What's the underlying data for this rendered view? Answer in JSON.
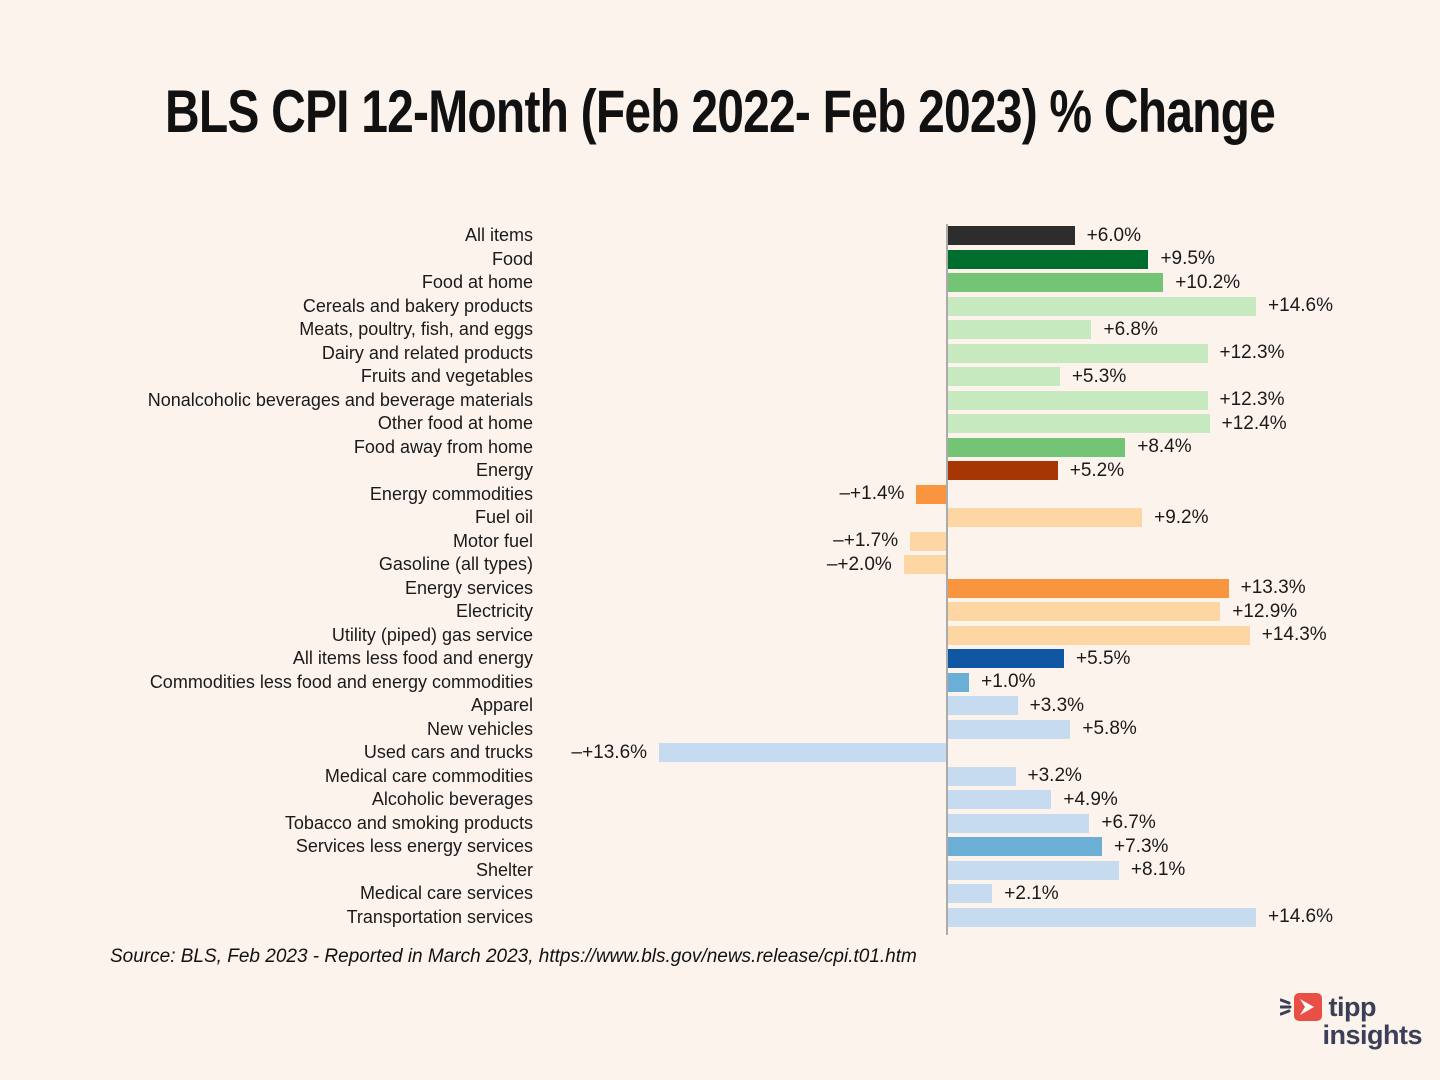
{
  "title": "BLS CPI 12-Month (Feb 2022- Feb 2023) % Change",
  "source_note": "Source:  BLS, Feb 2023 - Reported in March 2023, https://www.bls.gov/news.release/cpi.t01.htm",
  "logo": {
    "line1": "tipp",
    "line2": "insights",
    "icon": "tipp-insights-arrow-icon",
    "navy": "#3b4058",
    "red": "#e94f46"
  },
  "colors": {
    "background": "#fdf3ed",
    "axis_line": "#ababab",
    "text": "#1a1a1a",
    "dark_gray": "#2d2d2d",
    "dark_green": "#006d2c",
    "mid_green": "#74c476",
    "light_green": "#c7e9c0",
    "dark_rust": "#a63603",
    "mid_orange": "#f8953e",
    "light_orange": "#fdd6a4",
    "dark_blue": "#0f57a2",
    "mid_blue": "#6baed6",
    "light_blue": "#c6dbef"
  },
  "chart_data": {
    "type": "bar",
    "orientation": "horizontal",
    "title": "BLS CPI 12-Month (Feb 2022- Feb 2023) % Change",
    "xlabel": "",
    "ylabel": "",
    "value_unit": "% change, 12-month",
    "xlim": [
      -15,
      15
    ],
    "grid": false,
    "zero_axis_line": true,
    "categories": [
      "All items",
      "Food",
      "Food at home",
      "Cereals and bakery products",
      "Meats, poultry, fish, and eggs",
      "Dairy and related products",
      "Fruits and vegetables",
      "Nonalcoholic beverages and beverage materials",
      "Other food at home",
      "Food away from home",
      "Energy",
      "Energy commodities",
      "Fuel oil",
      "Motor fuel",
      "Gasoline (all types)",
      "Energy services",
      "Electricity",
      "Utility (piped) gas service",
      "All items less food and energy",
      "Commodities less food and energy commodities",
      "Apparel",
      "New vehicles",
      "Used cars and trucks",
      "Medical care commodities",
      "Alcoholic beverages",
      "Tobacco and smoking products",
      "Services less energy services",
      "Shelter",
      "Medical care services",
      "Transportation services"
    ],
    "values": [
      6.0,
      9.5,
      10.2,
      14.6,
      6.8,
      12.3,
      5.3,
      12.3,
      12.4,
      8.4,
      5.2,
      -1.4,
      9.2,
      -1.7,
      -2.0,
      13.3,
      12.9,
      14.3,
      5.5,
      1.0,
      3.3,
      5.8,
      -13.6,
      3.2,
      4.9,
      6.7,
      7.3,
      8.1,
      2.1,
      14.6
    ],
    "value_labels": [
      "+6.0%",
      "+9.5%",
      "+10.2%",
      "+14.6%",
      "+6.8%",
      "+12.3%",
      "+5.3%",
      "+12.3%",
      "+12.4%",
      "+8.4%",
      "+5.2%",
      "–+1.4%",
      "+9.2%",
      "–+1.7%",
      "–+2.0%",
      "+13.3%",
      "+12.9%",
      "+14.3%",
      "+5.5%",
      "+1.0%",
      "+3.3%",
      "+5.8%",
      "–+13.6%",
      "+3.2%",
      "+4.9%",
      "+6.7%",
      "+7.3%",
      "+8.1%",
      "+2.1%",
      "+14.6%"
    ],
    "bar_colors": [
      "#2d2d2d",
      "#006d2c",
      "#74c476",
      "#c7e9c0",
      "#c7e9c0",
      "#c7e9c0",
      "#c7e9c0",
      "#c7e9c0",
      "#c7e9c0",
      "#74c476",
      "#a63603",
      "#f8953e",
      "#fdd6a4",
      "#fdd6a4",
      "#fdd6a4",
      "#f8953e",
      "#fdd6a4",
      "#fdd6a4",
      "#0f57a2",
      "#6baed6",
      "#c6dbef",
      "#c6dbef",
      "#c6dbef",
      "#c6dbef",
      "#c6dbef",
      "#c6dbef",
      "#6baed6",
      "#c6dbef",
      "#c6dbef",
      "#c6dbef"
    ],
    "legend": null
  }
}
